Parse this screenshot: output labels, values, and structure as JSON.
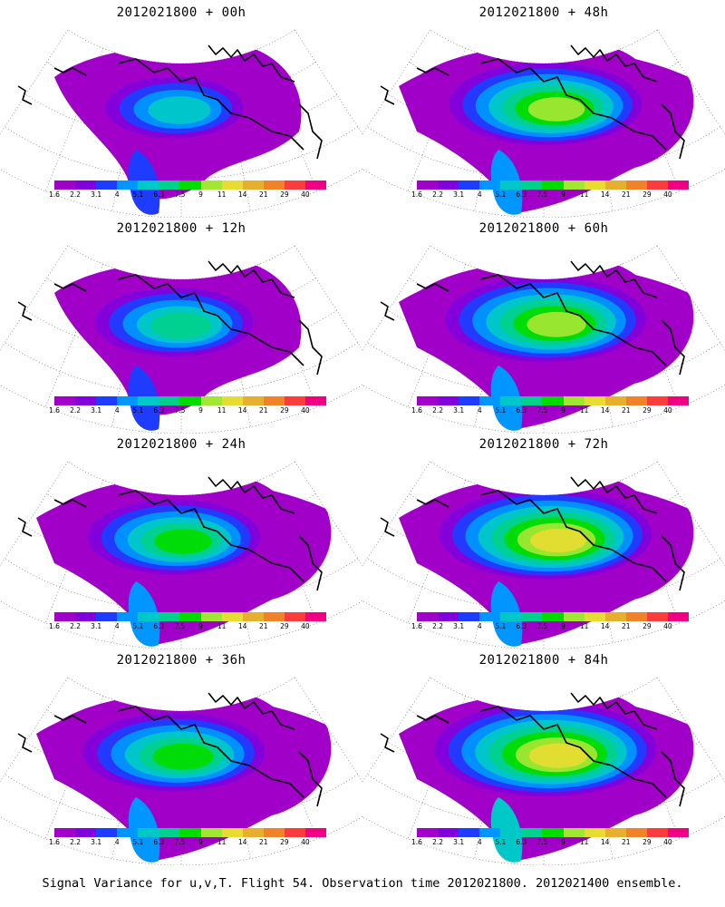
{
  "panels": [
    {
      "title": "2012021800 + 00h",
      "intensity": 0.25
    },
    {
      "title": "2012021800 + 48h",
      "intensity": 0.65
    },
    {
      "title": "2012021800 + 12h",
      "intensity": 0.4
    },
    {
      "title": "2012021800 + 60h",
      "intensity": 0.72
    },
    {
      "title": "2012021800 + 24h",
      "intensity": 0.5
    },
    {
      "title": "2012021800 + 72h",
      "intensity": 0.8
    },
    {
      "title": "2012021800 + 36h",
      "intensity": 0.58
    },
    {
      "title": "2012021800 + 84h",
      "intensity": 0.88
    }
  ],
  "colorbar": {
    "colors": [
      "#a000c8",
      "#8200dc",
      "#1e3cff",
      "#0096ff",
      "#00c8c8",
      "#00d28c",
      "#00dc00",
      "#a0e632",
      "#e6dc32",
      "#e6af2d",
      "#f08228",
      "#fa3c3c",
      "#f00082"
    ],
    "tick_labels": [
      "1.6",
      "2.2",
      "3.1",
      "4",
      "5.1",
      "6.3",
      "7.5",
      "9",
      "11",
      "14",
      "21",
      "29",
      "40"
    ]
  },
  "caption": "Signal Variance for u,v,T. Flight 54. Observation time 2012021800. 2012021400 ensemble."
}
